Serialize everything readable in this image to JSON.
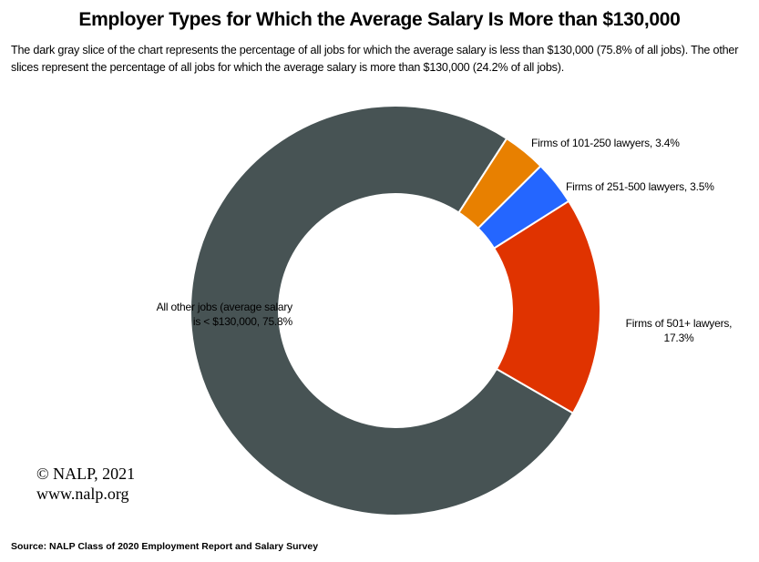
{
  "chart_data": {
    "type": "pie",
    "variant": "donut",
    "title": "Employer Types for Which the Average Salary Is More than $130,000",
    "subtitle": "The dark gray slice of the chart represents the percentage of all jobs for which the average salary is less than $130,000 (75.8% of all jobs). The other slices represent the percentage of all jobs for which the average salary is more than $130,000 (24.2% of all jobs).",
    "slices": [
      {
        "name": "All other jobs (average salary is < $130,000",
        "value": 75.8,
        "color": "#475354",
        "label_lines": [
          "All other jobs (average salary",
          "is < $130,000, 75.8%"
        ]
      },
      {
        "name": "Firms of 101-250 lawyers",
        "value": 3.4,
        "color": "#e88000",
        "label_lines": [
          "Firms of 101-250 lawyers, 3.4%"
        ]
      },
      {
        "name": "Firms of 251-500 lawyers",
        "value": 3.5,
        "color": "#2466ff",
        "label_lines": [
          "Firms of 251-500 lawyers, 3.5%"
        ]
      },
      {
        "name": "Firms of 501+ lawyers",
        "value": 17.3,
        "color": "#e03300",
        "label_lines": [
          "Firms of 501+ lawyers,",
          "17.3%"
        ]
      }
    ]
  },
  "copyright": {
    "line1": "© NALP, 2021",
    "line2": "www.nalp.org"
  },
  "source": "Source: NALP Class of 2020 Employment Report and Salary Survey"
}
